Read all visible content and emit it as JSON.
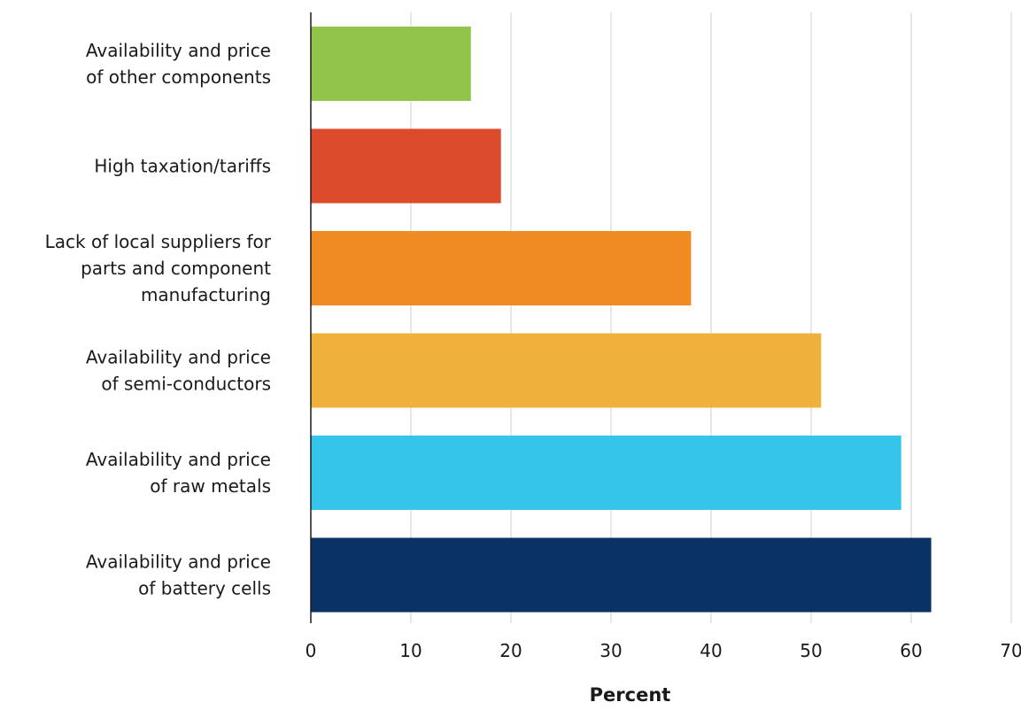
{
  "chart_data": {
    "type": "bar",
    "orientation": "horizontal",
    "title": "",
    "xlabel": "Percent",
    "ylabel": "",
    "xlim": [
      0,
      70
    ],
    "xticks": [
      0,
      10,
      20,
      30,
      40,
      50,
      60,
      70
    ],
    "grid": true,
    "legend": "none",
    "categories": [
      {
        "lines": [
          "Availability and price",
          "of other components"
        ],
        "value": 16,
        "color": "#92c34b"
      },
      {
        "lines": [
          "High taxation/tariffs"
        ],
        "value": 19,
        "color": "#dc4b2c"
      },
      {
        "lines": [
          "Lack of local suppliers for",
          "parts and component",
          "manufacturing"
        ],
        "value": 38,
        "color": "#f08a23"
      },
      {
        "lines": [
          "Availability and price",
          "of semi-conductors"
        ],
        "value": 51,
        "color": "#f0b03c"
      },
      {
        "lines": [
          "Availability and price",
          "of raw metals"
        ],
        "value": 59,
        "color": "#35c4ea"
      },
      {
        "lines": [
          "Availability and price",
          "of battery cells"
        ],
        "value": 62,
        "color": "#0b3264"
      }
    ]
  }
}
